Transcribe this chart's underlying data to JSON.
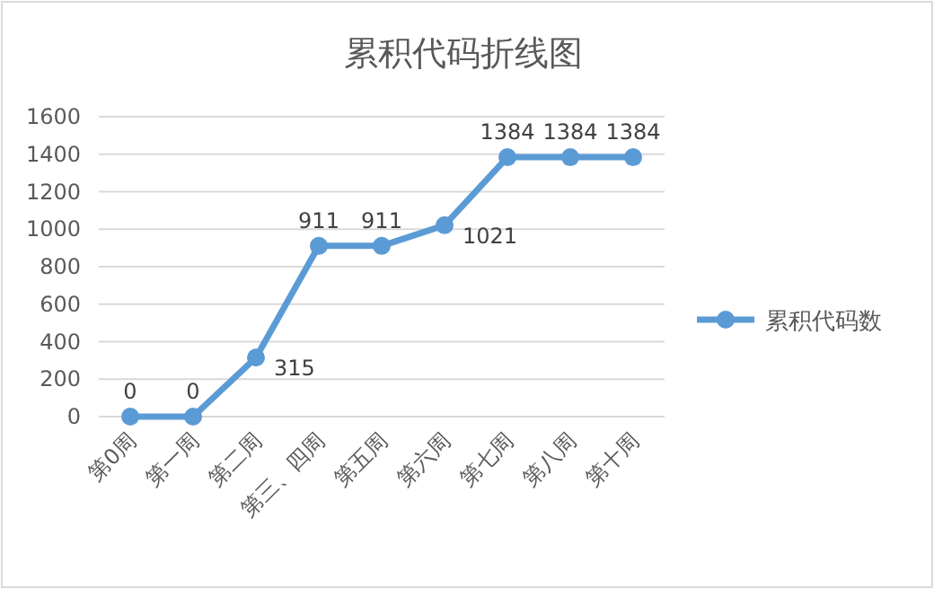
{
  "chart_data": {
    "type": "line",
    "title": "累积代码折线图",
    "categories": [
      "第0周",
      "第一周",
      "第二周",
      "第三、四周",
      "第五周",
      "第六周",
      "第七周",
      "第八周",
      "第十周"
    ],
    "series": [
      {
        "name": "累积代码数",
        "color": "#5b9bd5",
        "values": [
          0,
          0,
          315,
          911,
          911,
          1021,
          1384,
          1384,
          1384
        ]
      }
    ],
    "ylim": [
      0,
      1600
    ],
    "yticks": [
      0,
      200,
      400,
      600,
      800,
      1000,
      1200,
      1400,
      1600
    ],
    "grid": "y",
    "legend": "right",
    "marker": "circle",
    "line_style": "solid",
    "data_labels": true
  }
}
